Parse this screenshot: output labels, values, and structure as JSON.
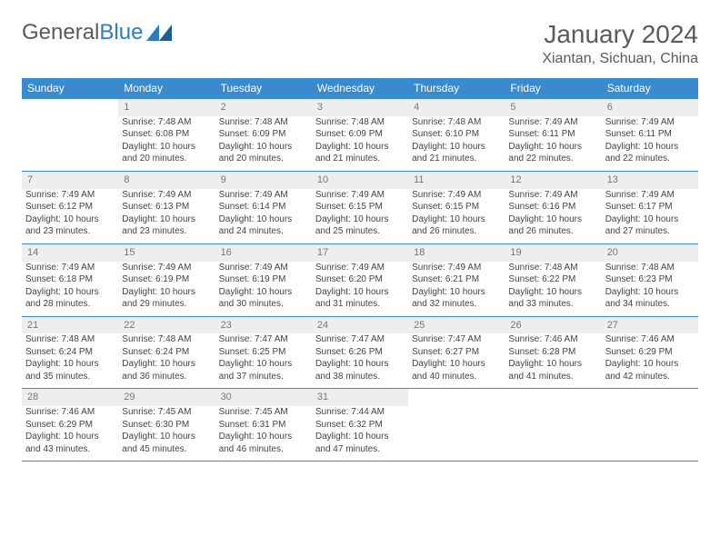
{
  "logo": {
    "text1": "General",
    "text2": "Blue"
  },
  "title": "January 2024",
  "location": "Xiantan, Sichuan, China",
  "colors": {
    "header_bg": "#3a8bce",
    "header_text": "#ffffff",
    "daynum_bg": "#eceeef",
    "daynum_text": "#777777",
    "border": "#3a8bce",
    "body_text": "#444444",
    "title_text": "#5a5a5a",
    "logo_accent": "#2e7cc0"
  },
  "day_names": [
    "Sunday",
    "Monday",
    "Tuesday",
    "Wednesday",
    "Thursday",
    "Friday",
    "Saturday"
  ],
  "weeks": [
    {
      "nums": [
        "",
        "1",
        "2",
        "3",
        "4",
        "5",
        "6"
      ],
      "cells": [
        null,
        {
          "sunrise": "Sunrise: 7:48 AM",
          "sunset": "Sunset: 6:08 PM",
          "daylight1": "Daylight: 10 hours",
          "daylight2": "and 20 minutes."
        },
        {
          "sunrise": "Sunrise: 7:48 AM",
          "sunset": "Sunset: 6:09 PM",
          "daylight1": "Daylight: 10 hours",
          "daylight2": "and 20 minutes."
        },
        {
          "sunrise": "Sunrise: 7:48 AM",
          "sunset": "Sunset: 6:09 PM",
          "daylight1": "Daylight: 10 hours",
          "daylight2": "and 21 minutes."
        },
        {
          "sunrise": "Sunrise: 7:48 AM",
          "sunset": "Sunset: 6:10 PM",
          "daylight1": "Daylight: 10 hours",
          "daylight2": "and 21 minutes."
        },
        {
          "sunrise": "Sunrise: 7:49 AM",
          "sunset": "Sunset: 6:11 PM",
          "daylight1": "Daylight: 10 hours",
          "daylight2": "and 22 minutes."
        },
        {
          "sunrise": "Sunrise: 7:49 AM",
          "sunset": "Sunset: 6:11 PM",
          "daylight1": "Daylight: 10 hours",
          "daylight2": "and 22 minutes."
        }
      ]
    },
    {
      "nums": [
        "7",
        "8",
        "9",
        "10",
        "11",
        "12",
        "13"
      ],
      "cells": [
        {
          "sunrise": "Sunrise: 7:49 AM",
          "sunset": "Sunset: 6:12 PM",
          "daylight1": "Daylight: 10 hours",
          "daylight2": "and 23 minutes."
        },
        {
          "sunrise": "Sunrise: 7:49 AM",
          "sunset": "Sunset: 6:13 PM",
          "daylight1": "Daylight: 10 hours",
          "daylight2": "and 23 minutes."
        },
        {
          "sunrise": "Sunrise: 7:49 AM",
          "sunset": "Sunset: 6:14 PM",
          "daylight1": "Daylight: 10 hours",
          "daylight2": "and 24 minutes."
        },
        {
          "sunrise": "Sunrise: 7:49 AM",
          "sunset": "Sunset: 6:15 PM",
          "daylight1": "Daylight: 10 hours",
          "daylight2": "and 25 minutes."
        },
        {
          "sunrise": "Sunrise: 7:49 AM",
          "sunset": "Sunset: 6:15 PM",
          "daylight1": "Daylight: 10 hours",
          "daylight2": "and 26 minutes."
        },
        {
          "sunrise": "Sunrise: 7:49 AM",
          "sunset": "Sunset: 6:16 PM",
          "daylight1": "Daylight: 10 hours",
          "daylight2": "and 26 minutes."
        },
        {
          "sunrise": "Sunrise: 7:49 AM",
          "sunset": "Sunset: 6:17 PM",
          "daylight1": "Daylight: 10 hours",
          "daylight2": "and 27 minutes."
        }
      ]
    },
    {
      "nums": [
        "14",
        "15",
        "16",
        "17",
        "18",
        "19",
        "20"
      ],
      "cells": [
        {
          "sunrise": "Sunrise: 7:49 AM",
          "sunset": "Sunset: 6:18 PM",
          "daylight1": "Daylight: 10 hours",
          "daylight2": "and 28 minutes."
        },
        {
          "sunrise": "Sunrise: 7:49 AM",
          "sunset": "Sunset: 6:19 PM",
          "daylight1": "Daylight: 10 hours",
          "daylight2": "and 29 minutes."
        },
        {
          "sunrise": "Sunrise: 7:49 AM",
          "sunset": "Sunset: 6:19 PM",
          "daylight1": "Daylight: 10 hours",
          "daylight2": "and 30 minutes."
        },
        {
          "sunrise": "Sunrise: 7:49 AM",
          "sunset": "Sunset: 6:20 PM",
          "daylight1": "Daylight: 10 hours",
          "daylight2": "and 31 minutes."
        },
        {
          "sunrise": "Sunrise: 7:49 AM",
          "sunset": "Sunset: 6:21 PM",
          "daylight1": "Daylight: 10 hours",
          "daylight2": "and 32 minutes."
        },
        {
          "sunrise": "Sunrise: 7:48 AM",
          "sunset": "Sunset: 6:22 PM",
          "daylight1": "Daylight: 10 hours",
          "daylight2": "and 33 minutes."
        },
        {
          "sunrise": "Sunrise: 7:48 AM",
          "sunset": "Sunset: 6:23 PM",
          "daylight1": "Daylight: 10 hours",
          "daylight2": "and 34 minutes."
        }
      ]
    },
    {
      "nums": [
        "21",
        "22",
        "23",
        "24",
        "25",
        "26",
        "27"
      ],
      "cells": [
        {
          "sunrise": "Sunrise: 7:48 AM",
          "sunset": "Sunset: 6:24 PM",
          "daylight1": "Daylight: 10 hours",
          "daylight2": "and 35 minutes."
        },
        {
          "sunrise": "Sunrise: 7:48 AM",
          "sunset": "Sunset: 6:24 PM",
          "daylight1": "Daylight: 10 hours",
          "daylight2": "and 36 minutes."
        },
        {
          "sunrise": "Sunrise: 7:47 AM",
          "sunset": "Sunset: 6:25 PM",
          "daylight1": "Daylight: 10 hours",
          "daylight2": "and 37 minutes."
        },
        {
          "sunrise": "Sunrise: 7:47 AM",
          "sunset": "Sunset: 6:26 PM",
          "daylight1": "Daylight: 10 hours",
          "daylight2": "and 38 minutes."
        },
        {
          "sunrise": "Sunrise: 7:47 AM",
          "sunset": "Sunset: 6:27 PM",
          "daylight1": "Daylight: 10 hours",
          "daylight2": "and 40 minutes."
        },
        {
          "sunrise": "Sunrise: 7:46 AM",
          "sunset": "Sunset: 6:28 PM",
          "daylight1": "Daylight: 10 hours",
          "daylight2": "and 41 minutes."
        },
        {
          "sunrise": "Sunrise: 7:46 AM",
          "sunset": "Sunset: 6:29 PM",
          "daylight1": "Daylight: 10 hours",
          "daylight2": "and 42 minutes."
        }
      ]
    },
    {
      "nums": [
        "28",
        "29",
        "30",
        "31",
        "",
        "",
        ""
      ],
      "cells": [
        {
          "sunrise": "Sunrise: 7:46 AM",
          "sunset": "Sunset: 6:29 PM",
          "daylight1": "Daylight: 10 hours",
          "daylight2": "and 43 minutes."
        },
        {
          "sunrise": "Sunrise: 7:45 AM",
          "sunset": "Sunset: 6:30 PM",
          "daylight1": "Daylight: 10 hours",
          "daylight2": "and 45 minutes."
        },
        {
          "sunrise": "Sunrise: 7:45 AM",
          "sunset": "Sunset: 6:31 PM",
          "daylight1": "Daylight: 10 hours",
          "daylight2": "and 46 minutes."
        },
        {
          "sunrise": "Sunrise: 7:44 AM",
          "sunset": "Sunset: 6:32 PM",
          "daylight1": "Daylight: 10 hours",
          "daylight2": "and 47 minutes."
        },
        null,
        null,
        null
      ]
    }
  ]
}
